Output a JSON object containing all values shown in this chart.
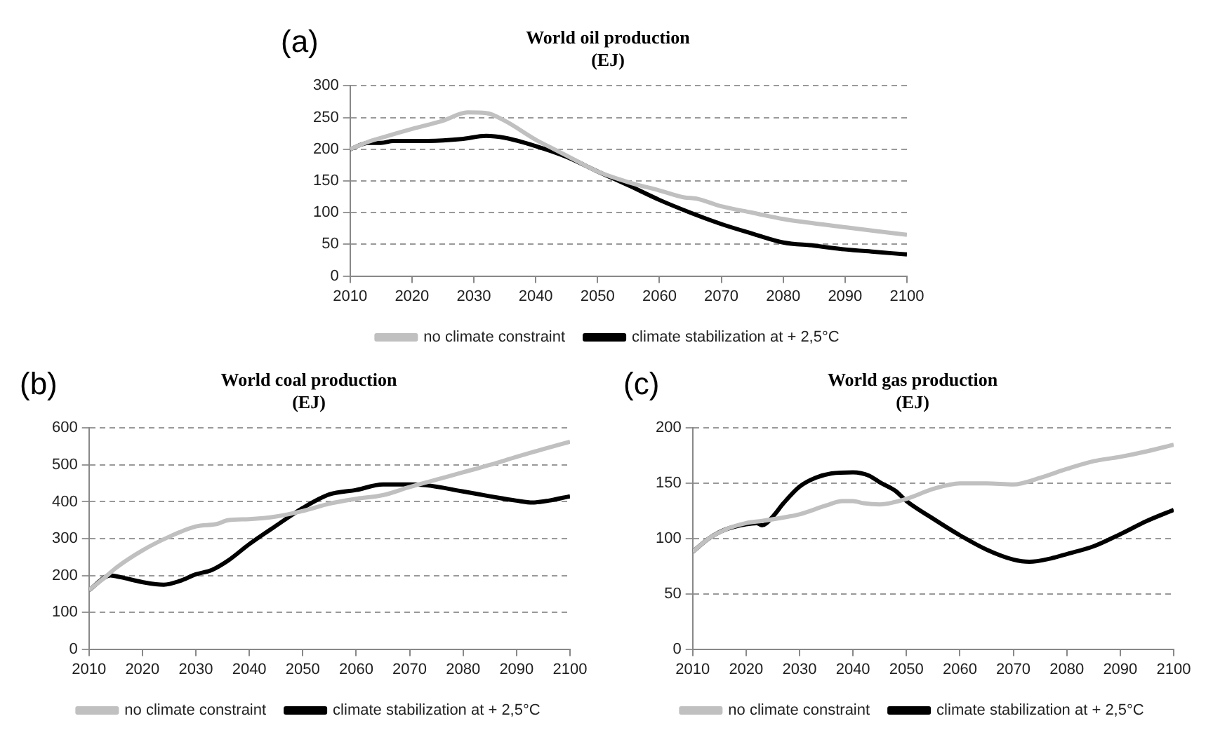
{
  "chart_data": [
    {
      "type": "line",
      "title": "World oil production",
      "subtitle": "(EJ)",
      "annotations": [
        "(a)"
      ],
      "xlim": [
        2010,
        2100
      ],
      "xticks": [
        2010,
        2020,
        2030,
        2040,
        2050,
        2060,
        2070,
        2080,
        2090,
        2100
      ],
      "ylim": [
        0,
        300
      ],
      "yticks": [
        0,
        50,
        100,
        150,
        200,
        250,
        300
      ],
      "grid": "y",
      "legend": "bottom",
      "marker": "none",
      "line_style": "solid",
      "series": [
        {
          "name": "no climate constraint",
          "color": "#c0c0c0",
          "x": [
            2010,
            2013,
            2015,
            2020,
            2025,
            2029,
            2032,
            2035,
            2040,
            2043,
            2045,
            2050,
            2055,
            2060,
            2064,
            2066,
            2070,
            2075,
            2080,
            2085,
            2090,
            2095,
            2100
          ],
          "values": [
            200,
            212,
            218,
            232,
            245,
            258,
            257,
            245,
            215,
            200,
            190,
            165,
            148,
            135,
            124,
            122,
            110,
            100,
            90,
            83,
            77,
            71,
            65
          ]
        },
        {
          "name": "climate stabilization at + 2,5°C",
          "color": "#000000",
          "x": [
            2010,
            2013,
            2015,
            2017,
            2020,
            2025,
            2028,
            2032,
            2035,
            2040,
            2045,
            2050,
            2055,
            2060,
            2065,
            2070,
            2075,
            2080,
            2085,
            2090,
            2095,
            2100
          ],
          "values": [
            200,
            210,
            210,
            213,
            213,
            214,
            216,
            221,
            218,
            205,
            188,
            165,
            143,
            120,
            100,
            82,
            67,
            53,
            48,
            42,
            38,
            34
          ]
        }
      ]
    },
    {
      "type": "line",
      "title": "World coal production",
      "subtitle": "(EJ)",
      "annotations": [
        "(b)"
      ],
      "xlim": [
        2010,
        2100
      ],
      "xticks": [
        2010,
        2020,
        2030,
        2040,
        2050,
        2060,
        2070,
        2080,
        2090,
        2100
      ],
      "ylim": [
        0,
        600
      ],
      "yticks": [
        0,
        100,
        200,
        300,
        400,
        500,
        600
      ],
      "grid": "y",
      "legend": "bottom",
      "marker": "none",
      "line_style": "solid",
      "series": [
        {
          "name": "no climate constraint",
          "color": "#c0c0c0",
          "x": [
            2010,
            2013,
            2015,
            2020,
            2025,
            2030,
            2034,
            2036,
            2040,
            2045,
            2050,
            2055,
            2060,
            2065,
            2070,
            2075,
            2080,
            2085,
            2090,
            2095,
            2100
          ],
          "values": [
            160,
            195,
            220,
            268,
            305,
            333,
            340,
            350,
            353,
            360,
            375,
            395,
            408,
            418,
            440,
            460,
            480,
            500,
            522,
            543,
            563
          ]
        },
        {
          "name": "climate stabilization at + 2,5°C",
          "color": "#000000",
          "x": [
            2010,
            2014,
            2016,
            2020,
            2024,
            2027,
            2030,
            2033,
            2036,
            2040,
            2045,
            2050,
            2055,
            2060,
            2065,
            2070,
            2073,
            2080,
            2085,
            2090,
            2093,
            2096,
            2100
          ],
          "values": [
            160,
            200,
            195,
            182,
            175,
            185,
            203,
            215,
            240,
            285,
            335,
            383,
            420,
            432,
            447,
            447,
            445,
            428,
            415,
            403,
            398,
            403,
            415
          ]
        }
      ]
    },
    {
      "type": "line",
      "title": "World gas production",
      "subtitle": "(EJ)",
      "annotations": [
        "(c)"
      ],
      "xlim": [
        2010,
        2100
      ],
      "xticks": [
        2010,
        2020,
        2030,
        2040,
        2050,
        2060,
        2070,
        2080,
        2090,
        2100
      ],
      "ylim": [
        0,
        200
      ],
      "yticks": [
        0,
        50,
        100,
        150,
        200
      ],
      "grid": "y",
      "legend": "bottom",
      "marker": "none",
      "line_style": "solid",
      "series": [
        {
          "name": "no climate constraint",
          "color": "#c0c0c0",
          "x": [
            2010,
            2013,
            2016,
            2020,
            2023,
            2028,
            2030,
            2035,
            2038,
            2040,
            2042,
            2045,
            2050,
            2055,
            2060,
            2065,
            2070,
            2075,
            2080,
            2085,
            2090,
            2095,
            2100
          ],
          "values": [
            88,
            100,
            108,
            114,
            116,
            120,
            122,
            130,
            134,
            134,
            132,
            131,
            136,
            145,
            150,
            150,
            149,
            155,
            163,
            170,
            174,
            179,
            185
          ]
        },
        {
          "name": "climate stabilization at + 2,5°C",
          "color": "#000000",
          "x": [
            2010,
            2013,
            2016,
            2020,
            2022,
            2023,
            2025,
            2027,
            2030,
            2033,
            2036,
            2040,
            2043,
            2045,
            2048,
            2050,
            2055,
            2060,
            2065,
            2070,
            2073,
            2077,
            2080,
            2085,
            2090,
            2095,
            2100
          ],
          "values": [
            88,
            100,
            108,
            113,
            114,
            112,
            120,
            132,
            147,
            155,
            159,
            160,
            157,
            151,
            143,
            134,
            118,
            103,
            90,
            81,
            79,
            82,
            86,
            93,
            104,
            116,
            126
          ]
        }
      ]
    }
  ]
}
